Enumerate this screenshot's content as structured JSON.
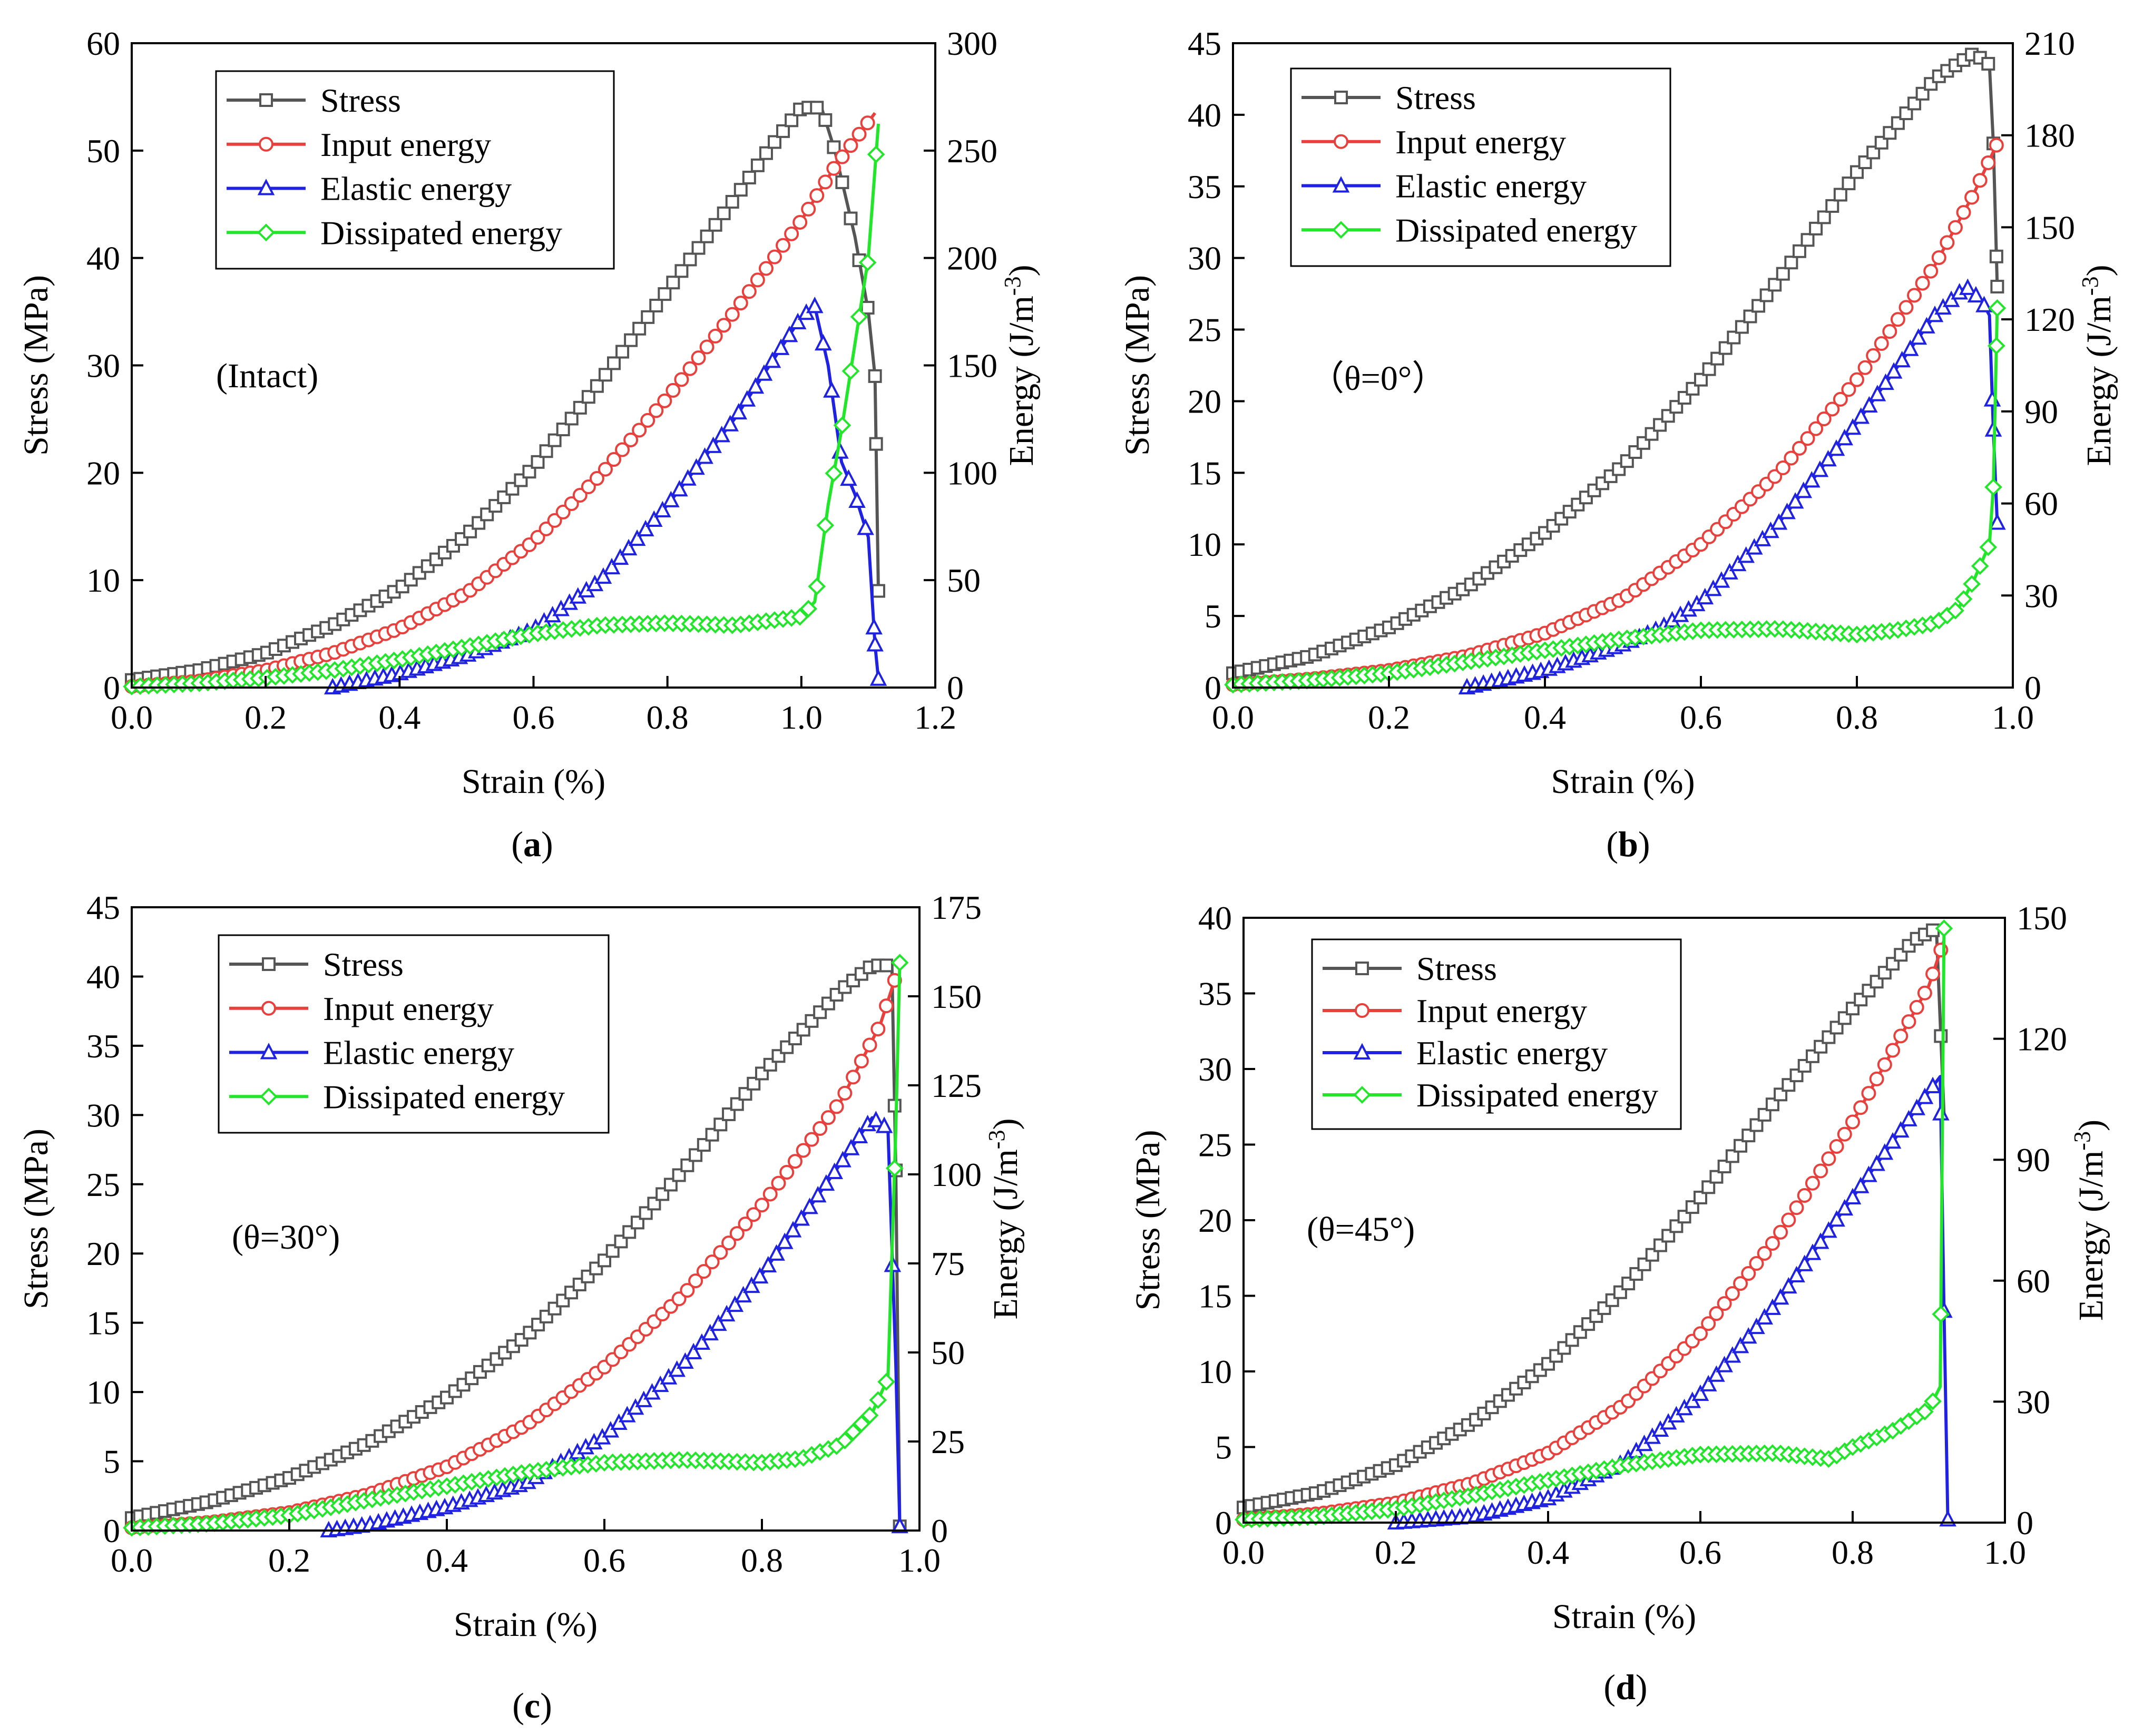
{
  "colors": {
    "stress": "#555555",
    "input": "#e8403c",
    "elastic": "#1f22e0",
    "dissipated": "#22e62a",
    "axis": "#000000"
  },
  "marker_shapes": {
    "stress": "square",
    "input": "circle",
    "elastic": "triangle",
    "dissipated": "diamond"
  },
  "chart_data": [
    {
      "panel_label": "a",
      "type": "line",
      "annotation": "(Intact)",
      "xlabel": "Strain (%)",
      "ylabel_left": "Stress (MPa)",
      "ylabel_right_main": "Energy (J/m",
      "ylabel_right_sup": "-3",
      "ylabel_right_tail": ")",
      "xlim": [
        0,
        1.2
      ],
      "ylim_left": [
        0,
        60
      ],
      "ylim_right": [
        0,
        300
      ],
      "xticks": [
        "0.0",
        "0.2",
        "0.4",
        "0.6",
        "0.8",
        "1.0",
        "1.2"
      ],
      "yticks_left": [
        "0",
        "10",
        "20",
        "30",
        "40",
        "50",
        "60"
      ],
      "yticks_right": [
        "0",
        "50",
        "100",
        "150",
        "200",
        "250",
        "300"
      ],
      "legend": [
        "Stress",
        "Input energy",
        "Elastic energy",
        "Dissipated energy"
      ],
      "legend_position": "top-left",
      "series": [
        {
          "name": "Stress",
          "axis": "left",
          "x": [
            0,
            0.1,
            0.2,
            0.3,
            0.4,
            0.5,
            0.6,
            0.7,
            0.8,
            0.9,
            0.95,
            1.0,
            1.03,
            1.05,
            1.08,
            1.1,
            1.11,
            1.115
          ],
          "y": [
            0.7,
            1.6,
            3.2,
            5.8,
            9.2,
            14.2,
            20.5,
            28.5,
            37.0,
            45.5,
            50.0,
            54.0,
            54.0,
            50.0,
            42.0,
            35.0,
            29.0,
            9.0
          ]
        },
        {
          "name": "Input energy",
          "axis": "left",
          "x": [
            0,
            0.1,
            0.2,
            0.3,
            0.4,
            0.5,
            0.6,
            0.7,
            0.8,
            0.9,
            1.0,
            1.05,
            1.11
          ],
          "y": [
            0.1,
            0.6,
            1.6,
            3.2,
            5.5,
            8.8,
            13.6,
            19.8,
            27.0,
            35.0,
            43.5,
            48.5,
            53.5
          ]
        },
        {
          "name": "Elastic energy",
          "axis": "left",
          "x": [
            0.3,
            0.4,
            0.5,
            0.6,
            0.7,
            0.8,
            0.9,
            1.0,
            1.02,
            1.04,
            1.06,
            1.08,
            1.1,
            1.11,
            1.115
          ],
          "y": [
            0,
            1.3,
            3.0,
            5.4,
            10.0,
            17.0,
            25.0,
            34.5,
            35.5,
            30.0,
            21.0,
            18.0,
            14.0,
            4.0,
            0.8
          ]
        },
        {
          "name": "Dissipated energy",
          "axis": "left",
          "x": [
            0,
            0.1,
            0.2,
            0.3,
            0.4,
            0.5,
            0.6,
            0.7,
            0.8,
            0.9,
            1.0,
            1.02,
            1.04,
            1.06,
            1.08,
            1.1,
            1.115
          ],
          "y": [
            0.1,
            0.4,
            0.9,
            1.6,
            2.6,
            3.8,
            5.0,
            5.8,
            6.0,
            5.8,
            6.6,
            8.0,
            17.0,
            24.0,
            32.0,
            40.0,
            52.5
          ]
        }
      ]
    },
    {
      "panel_label": "b",
      "type": "line",
      "annotation": "（θ=0°）",
      "xlabel": "Strain (%)",
      "ylabel_left": "Stress (MPa)",
      "ylabel_right_main": "Energy (J/m",
      "ylabel_right_sup": "-3",
      "ylabel_right_tail": ")",
      "xlim": [
        0,
        1.0
      ],
      "ylim_left": [
        0,
        45
      ],
      "ylim_right": [
        0,
        210
      ],
      "xticks": [
        "0.0",
        "0.2",
        "0.4",
        "0.6",
        "0.8",
        "1.0"
      ],
      "yticks_left": [
        "0",
        "5",
        "10",
        "15",
        "20",
        "25",
        "30",
        "35",
        "40",
        "45"
      ],
      "yticks_right": [
        "0",
        "30",
        "60",
        "90",
        "120",
        "150",
        "180",
        "210"
      ],
      "legend": [
        "Stress",
        "Input energy",
        "Elastic energy",
        "Dissipated energy"
      ],
      "legend_position": "top-left",
      "series": [
        {
          "name": "Stress",
          "axis": "left",
          "x": [
            0,
            0.1,
            0.2,
            0.3,
            0.4,
            0.5,
            0.6,
            0.7,
            0.8,
            0.9,
            0.95,
            0.97,
            0.975,
            0.98
          ],
          "y": [
            1.0,
            2.2,
            4.2,
            7.0,
            10.8,
            15.5,
            21.5,
            28.5,
            36.0,
            42.5,
            44.3,
            43.5,
            38.0,
            28.0
          ]
        },
        {
          "name": "Input energy",
          "axis": "left",
          "x": [
            0,
            0.1,
            0.2,
            0.3,
            0.4,
            0.5,
            0.6,
            0.7,
            0.8,
            0.9,
            0.95,
            0.98
          ],
          "y": [
            0.2,
            0.6,
            1.2,
            2.2,
            3.8,
            6.2,
            10.0,
            15.0,
            21.5,
            29.5,
            34.5,
            38.0
          ]
        },
        {
          "name": "Elastic energy",
          "axis": "left",
          "x": [
            0.3,
            0.4,
            0.5,
            0.55,
            0.6,
            0.7,
            0.8,
            0.9,
            0.94,
            0.96,
            0.97,
            0.975,
            0.98
          ],
          "y": [
            0,
            1.2,
            3.0,
            4.2,
            6.0,
            11.5,
            18.5,
            26.0,
            28.0,
            27.0,
            26.0,
            18.0,
            11.5
          ]
        },
        {
          "name": "Dissipated energy",
          "axis": "left",
          "x": [
            0,
            0.1,
            0.2,
            0.3,
            0.4,
            0.5,
            0.6,
            0.7,
            0.8,
            0.85,
            0.9,
            0.93,
            0.95,
            0.97,
            0.975,
            0.98
          ],
          "y": [
            0.2,
            0.5,
            1.0,
            1.8,
            2.6,
            3.4,
            4.0,
            4.1,
            3.7,
            4.0,
            4.5,
            5.5,
            7.5,
            10.0,
            14.0,
            26.5
          ]
        }
      ]
    },
    {
      "panel_label": "c",
      "type": "line",
      "annotation": "(θ=30°)",
      "xlabel": "Strain (%)",
      "ylabel_left": "Stress (MPa)",
      "ylabel_right_main": "Energy (J/m",
      "ylabel_right_sup": "-3",
      "ylabel_right_tail": ")",
      "xlim": [
        0,
        1.0
      ],
      "ylim_left": [
        0,
        45
      ],
      "ylim_right": [
        0,
        175
      ],
      "xticks": [
        "0.0",
        "0.2",
        "0.4",
        "0.6",
        "0.8",
        "1.0"
      ],
      "yticks_left": [
        "0",
        "5",
        "10",
        "15",
        "20",
        "25",
        "30",
        "35",
        "40",
        "45"
      ],
      "yticks_right": [
        "0",
        "25",
        "50",
        "75",
        "100",
        "125",
        "150",
        "175"
      ],
      "legend": [
        "Stress",
        "Input energy",
        "Elastic energy",
        "Dissipated energy"
      ],
      "legend_position": "top-left",
      "series": [
        {
          "name": "Stress",
          "axis": "left",
          "x": [
            0,
            0.1,
            0.2,
            0.3,
            0.4,
            0.5,
            0.6,
            0.7,
            0.8,
            0.9,
            0.94,
            0.965,
            0.97,
            0.975
          ],
          "y": [
            0.9,
            2.1,
            3.8,
            6.3,
            9.6,
            14.0,
            19.5,
            26.0,
            33.0,
            39.0,
            40.8,
            40.8,
            26.0,
            0.3
          ]
        },
        {
          "name": "Input energy",
          "axis": "left",
          "x": [
            0,
            0.1,
            0.2,
            0.3,
            0.4,
            0.5,
            0.6,
            0.7,
            0.8,
            0.9,
            0.95,
            0.97
          ],
          "y": [
            0.2,
            0.6,
            1.3,
            2.6,
            4.6,
            7.6,
            11.8,
            17.0,
            23.5,
            31.0,
            36.5,
            40.0
          ]
        },
        {
          "name": "Elastic energy",
          "axis": "left",
          "x": [
            0.25,
            0.3,
            0.4,
            0.5,
            0.6,
            0.7,
            0.8,
            0.9,
            0.94,
            0.96,
            0.97,
            0.975
          ],
          "y": [
            0,
            0.4,
            1.7,
            3.4,
            6.8,
            12.0,
            18.5,
            26.5,
            29.8,
            29.0,
            12.0,
            0.3
          ]
        },
        {
          "name": "Dissipated energy",
          "axis": "left",
          "x": [
            0,
            0.1,
            0.2,
            0.3,
            0.4,
            0.5,
            0.6,
            0.7,
            0.8,
            0.85,
            0.9,
            0.94,
            0.96,
            0.97,
            0.975
          ],
          "y": [
            0.2,
            0.5,
            1.1,
            2.2,
            3.2,
            4.2,
            4.9,
            5.1,
            4.9,
            5.2,
            6.2,
            8.5,
            11.0,
            29.0,
            41.0
          ]
        }
      ]
    },
    {
      "panel_label": "d",
      "type": "line",
      "annotation": "(θ=45°)",
      "xlabel": "Strain (%)",
      "ylabel_left": "Stress (MPa)",
      "ylabel_right_main": "Energy (J/m",
      "ylabel_right_sup": "-3",
      "ylabel_right_tail": ")",
      "xlim": [
        0,
        1.0
      ],
      "ylim_left": [
        0,
        40
      ],
      "ylim_right": [
        0,
        150
      ],
      "xticks": [
        "0.0",
        "0.2",
        "0.4",
        "0.6",
        "0.8",
        "1.0"
      ],
      "yticks_left": [
        "0",
        "5",
        "10",
        "15",
        "20",
        "25",
        "30",
        "35",
        "40"
      ],
      "yticks_right": [
        "0",
        "30",
        "60",
        "90",
        "120",
        "150"
      ],
      "legend": [
        "Stress",
        "Input energy",
        "Elastic energy",
        "Dissipated energy"
      ],
      "legend_position": "top-left",
      "series": [
        {
          "name": "Stress",
          "axis": "left",
          "x": [
            0,
            0.1,
            0.2,
            0.3,
            0.4,
            0.5,
            0.6,
            0.7,
            0.8,
            0.88,
            0.91,
            0.92
          ],
          "y": [
            1.0,
            2.0,
            3.8,
            6.6,
            10.5,
            15.5,
            21.5,
            28.0,
            34.0,
            38.5,
            39.3,
            27.0
          ]
        },
        {
          "name": "Input energy",
          "axis": "left",
          "x": [
            0,
            0.1,
            0.2,
            0.3,
            0.4,
            0.5,
            0.6,
            0.7,
            0.8,
            0.9,
            0.92
          ],
          "y": [
            0.2,
            0.6,
            1.3,
            2.6,
            4.6,
            7.8,
            12.5,
            18.8,
            26.5,
            35.5,
            38.5
          ]
        },
        {
          "name": "Elastic energy",
          "axis": "left",
          "x": [
            0.2,
            0.3,
            0.4,
            0.5,
            0.6,
            0.7,
            0.8,
            0.9,
            0.915,
            0.92,
            0.925
          ],
          "y": [
            0,
            0.4,
            1.6,
            4.0,
            8.5,
            14.5,
            21.5,
            28.5,
            29.5,
            14.0,
            0.2
          ]
        },
        {
          "name": "Dissipated energy",
          "axis": "left",
          "x": [
            0,
            0.1,
            0.2,
            0.3,
            0.4,
            0.5,
            0.6,
            0.7,
            0.77,
            0.8,
            0.85,
            0.9,
            0.915,
            0.92
          ],
          "y": [
            0.2,
            0.4,
            0.9,
            1.8,
            2.8,
            3.8,
            4.5,
            4.6,
            4.2,
            5.0,
            6.0,
            7.5,
            9.0,
            39.3
          ]
        }
      ]
    }
  ]
}
